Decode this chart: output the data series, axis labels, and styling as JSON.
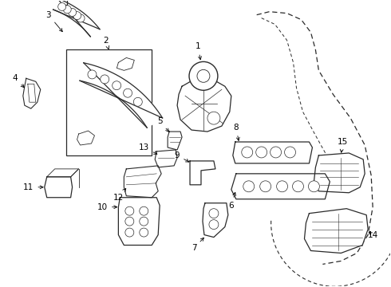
{
  "bg_color": "#ffffff",
  "line_color": "#2a2a2a",
  "fig_w": 4.9,
  "fig_h": 3.6,
  "dpi": 100
}
